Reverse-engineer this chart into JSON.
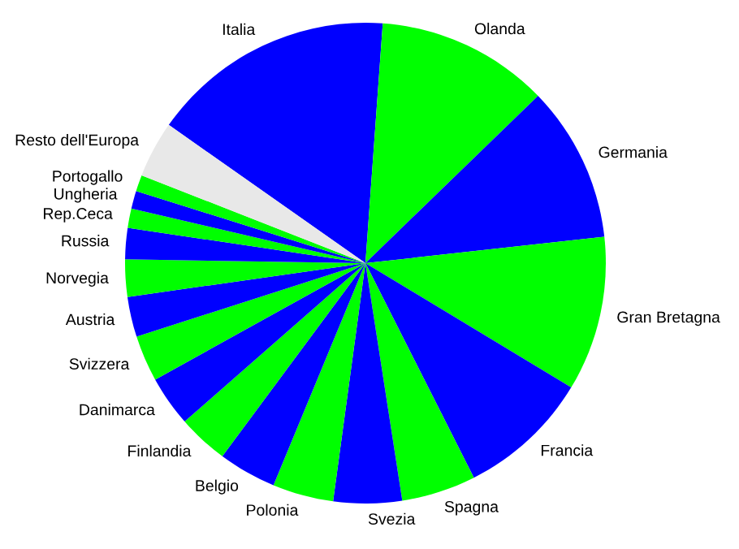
{
  "chart_data": {
    "type": "pie",
    "categories": [
      "Italia",
      "Olanda",
      "Germania",
      "Gran Bretagna",
      "Francia",
      "Spagna",
      "Svezia",
      "Polonia",
      "Belgio",
      "Finlandia",
      "Danimarca",
      "Svizzera",
      "Austria",
      "Norvegia",
      "Russia",
      "Rep.Ceca",
      "Ungheria",
      "Portogallo",
      "Resto dell'Europa"
    ],
    "values": [
      16.4,
      11.6,
      10.5,
      10.4,
      8.9,
      5.0,
      4.6,
      4.1,
      3.9,
      3.4,
      3.4,
      3.1,
      2.7,
      2.5,
      2.1,
      1.3,
      1.2,
      1.1,
      3.8
    ],
    "colors": [
      "#0000ff",
      "#00ff00",
      "#0000ff",
      "#00ff00",
      "#0000ff",
      "#00ff00",
      "#0000ff",
      "#00ff00",
      "#0000ff",
      "#00ff00",
      "#0000ff",
      "#00ff00",
      "#0000ff",
      "#00ff00",
      "#0000ff",
      "#00ff00",
      "#0000ff",
      "#00ff00",
      "#e8e8e8"
    ]
  }
}
